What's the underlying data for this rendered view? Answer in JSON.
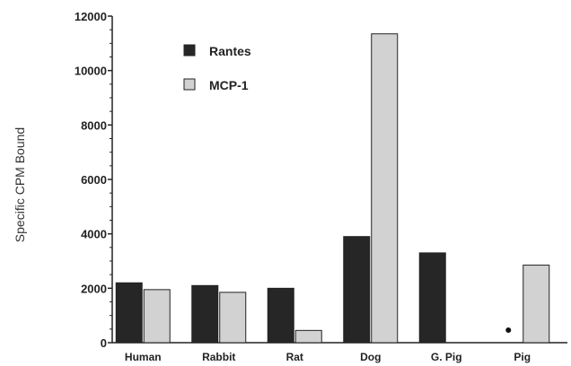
{
  "chart_data": {
    "type": "bar",
    "title": "",
    "xlabel": "",
    "ylabel": "Specific  CPM Bound",
    "ylim": [
      0,
      12000
    ],
    "yticks": [
      0,
      2000,
      4000,
      6000,
      8000,
      10000,
      12000
    ],
    "ytick_labels": [
      "0",
      "2000",
      "4000",
      "6000",
      "8000",
      "10000",
      "12000"
    ],
    "grid": false,
    "legend_position": "top-left",
    "categories": [
      "Human",
      "Rabbit",
      "Rat",
      "Dog",
      "G. Pig",
      "Pig"
    ],
    "series": [
      {
        "name": "Rantes",
        "color": "#262626",
        "values": [
          2200,
          2100,
          2000,
          3900,
          3300,
          0
        ]
      },
      {
        "name": "MCP-1",
        "color": "#d2d2d2",
        "values": [
          1950,
          1850,
          450,
          11350,
          0,
          2850
        ]
      }
    ],
    "annotations": [
      {
        "marker": "dot",
        "category": "Pig",
        "series": "Rantes"
      }
    ]
  }
}
